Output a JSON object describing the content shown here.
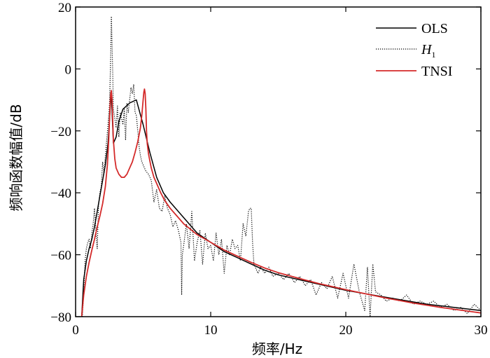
{
  "chart_data": {
    "type": "line",
    "title": "",
    "xlabel": "频率/Hz",
    "ylabel": "频响函数幅值/dB",
    "xlim": [
      0,
      30
    ],
    "ylim": [
      -80,
      20
    ],
    "xticks": [
      0,
      10,
      20,
      30
    ],
    "yticks": [
      20,
      0,
      -20,
      -40,
      -60,
      -80
    ],
    "grid": false,
    "legend_position": "top-right",
    "series": [
      {
        "name": "OLS",
        "style": "solid",
        "color": "#000000",
        "x": [
          0.45,
          0.6,
          0.8,
          1.0,
          1.2,
          1.4,
          1.6,
          1.8,
          2.0,
          2.2,
          2.4,
          2.6,
          2.65,
          2.7,
          2.8,
          3.0,
          3.2,
          3.5,
          4.0,
          4.5,
          5.0,
          5.5,
          6.0,
          6.5,
          7.0,
          8.0,
          9.0,
          10.0,
          11.0,
          12.0,
          13.0,
          14.0,
          15.0,
          16.0,
          18.0,
          20.0,
          22.0,
          24.0,
          26.0,
          28.0,
          30.0
        ],
        "y": [
          -80,
          -68,
          -62,
          -58,
          -55,
          -51,
          -46,
          -41,
          -36,
          -31,
          -24,
          -10,
          -8,
          -14,
          -24,
          -22,
          -17,
          -13,
          -11,
          -10,
          -18,
          -27,
          -35,
          -40,
          -43,
          -48,
          -53,
          -56,
          -59,
          -61,
          -63,
          -65,
          -66.5,
          -67.5,
          -69.5,
          -71.5,
          -73,
          -74.5,
          -76,
          -77,
          -78
        ]
      },
      {
        "name": "H1",
        "style": "dotted",
        "color": "#000000",
        "x": [
          0.5,
          0.6,
          0.7,
          0.8,
          0.9,
          1.0,
          1.1,
          1.2,
          1.3,
          1.4,
          1.5,
          1.6,
          1.7,
          1.8,
          1.9,
          2.0,
          2.1,
          2.2,
          2.3,
          2.4,
          2.5,
          2.55,
          2.6,
          2.65,
          2.7,
          2.75,
          2.8,
          2.9,
          3.0,
          3.1,
          3.2,
          3.3,
          3.4,
          3.5,
          3.6,
          3.7,
          3.8,
          3.9,
          4.0,
          4.1,
          4.2,
          4.3,
          4.4,
          4.5,
          4.6,
          4.7,
          4.8,
          4.9,
          5.0,
          5.2,
          5.4,
          5.6,
          5.8,
          6.0,
          6.2,
          6.4,
          6.6,
          6.8,
          7.0,
          7.2,
          7.4,
          7.6,
          7.8,
          7.85,
          7.9,
          8.0,
          8.2,
          8.4,
          8.6,
          8.8,
          9.0,
          9.2,
          9.4,
          9.6,
          9.8,
          10.0,
          10.2,
          10.4,
          10.6,
          10.8,
          11.0,
          11.2,
          11.4,
          11.6,
          11.8,
          12.0,
          12.2,
          12.4,
          12.6,
          12.8,
          12.9,
          13.0,
          13.1,
          13.2,
          13.3,
          13.5,
          13.7,
          14.0,
          14.3,
          14.6,
          15.0,
          15.4,
          15.8,
          16.2,
          16.6,
          17.0,
          17.4,
          17.8,
          18.2,
          18.6,
          19.0,
          19.4,
          19.8,
          20.2,
          20.6,
          21.0,
          21.4,
          21.6,
          21.8,
          22.0,
          22.2,
          22.6,
          23.0,
          23.5,
          24.0,
          24.5,
          25.0,
          25.5,
          26.0,
          26.5,
          27.0,
          27.5,
          28.0,
          28.5,
          29.0,
          29.5,
          30.0
        ],
        "y": [
          -80,
          -72,
          -62,
          -58,
          -56,
          -55,
          -58,
          -53,
          -50,
          -45,
          -52,
          -58,
          -44,
          -40,
          -38,
          -30,
          -34,
          -28,
          -23,
          -18,
          -12,
          -5,
          5,
          17,
          8,
          -2,
          -13,
          -16,
          -19,
          -12,
          -22,
          -14,
          -16,
          -18,
          -13,
          -23,
          -11,
          -14,
          -10,
          -6,
          -8,
          -5,
          -14,
          -15,
          -20,
          -25,
          -28,
          -30,
          -31,
          -33,
          -34,
          -36,
          -43,
          -39,
          -45,
          -46,
          -41,
          -45,
          -47,
          -51,
          -49,
          -52,
          -56,
          -73,
          -60,
          -57,
          -50,
          -58,
          -46,
          -62,
          -56,
          -52,
          -63,
          -53,
          -58,
          -57,
          -62,
          -53,
          -60,
          -55,
          -66,
          -57,
          -60,
          -55,
          -58,
          -57,
          -62,
          -50,
          -54,
          -46,
          -45,
          -45,
          -56,
          -63,
          -64,
          -66,
          -64,
          -66,
          -64,
          -67,
          -66,
          -68,
          -66,
          -69,
          -67,
          -70,
          -68,
          -73,
          -69,
          -71,
          -67,
          -74,
          -66,
          -74,
          -63,
          -72,
          -78,
          -64,
          -80,
          -63,
          -72,
          -73,
          -75,
          -74,
          -75,
          -73,
          -76,
          -75,
          -76,
          -75,
          -77,
          -76,
          -78,
          -77,
          -79,
          -76,
          -78
        ]
      },
      {
        "name": "TNSI",
        "style": "solid",
        "color": "#d42a2a",
        "x": [
          0.45,
          0.6,
          0.8,
          1.0,
          1.2,
          1.4,
          1.6,
          1.8,
          2.0,
          2.2,
          2.35,
          2.45,
          2.55,
          2.6,
          2.65,
          2.7,
          2.75,
          2.8,
          2.9,
          3.0,
          3.2,
          3.4,
          3.6,
          3.8,
          4.0,
          4.2,
          4.4,
          4.6,
          4.8,
          4.9,
          5.0,
          5.05,
          5.1,
          5.15,
          5.2,
          5.25,
          5.3,
          5.4,
          5.6,
          5.8,
          6.0,
          6.3,
          6.6,
          7.0,
          7.5,
          8.0,
          9.0,
          10.0,
          11.0,
          12.0,
          13.0,
          14.0,
          15.0,
          16.0,
          17.0,
          18.0,
          19.0,
          20.0,
          21.0,
          22.0,
          23.0,
          24.0,
          25.0,
          26.0,
          27.0,
          28.0,
          29.0,
          30.0
        ],
        "y": [
          -80,
          -73,
          -67,
          -62.5,
          -58.5,
          -55,
          -51,
          -47.5,
          -43.5,
          -38,
          -31,
          -23,
          -12,
          -8,
          -7,
          -10,
          -17,
          -23,
          -29,
          -32,
          -34,
          -35,
          -35,
          -34,
          -32,
          -30,
          -27,
          -23.5,
          -19,
          -15,
          -10,
          -7.5,
          -6.5,
          -8,
          -13,
          -20,
          -24,
          -27.5,
          -32,
          -35,
          -37,
          -40,
          -42.5,
          -45,
          -47.5,
          -50,
          -53.5,
          -56,
          -58.5,
          -60.5,
          -62.5,
          -64.3,
          -65.8,
          -67,
          -68.2,
          -69.3,
          -70.3,
          -71.3,
          -72.2,
          -73.1,
          -74,
          -74.8,
          -75.6,
          -76.3,
          -77,
          -77.6,
          -78.2,
          -78.8
        ]
      }
    ]
  }
}
